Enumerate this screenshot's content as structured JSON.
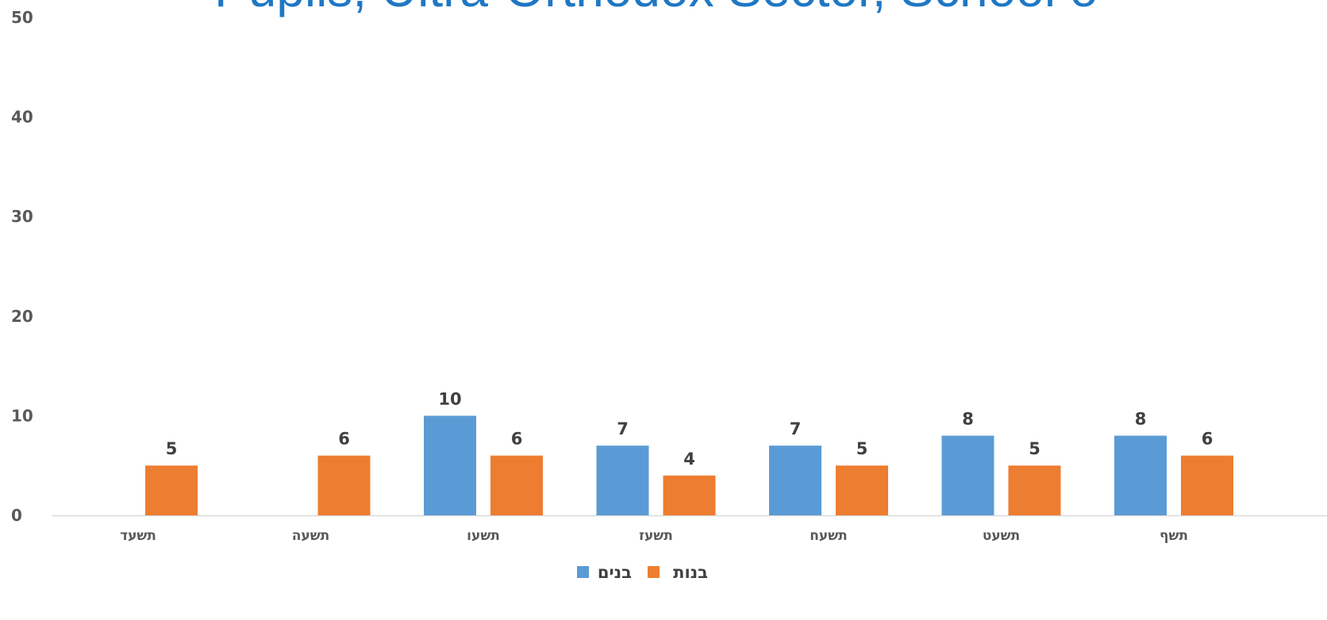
{
  "chart_data": {
    "type": "bar",
    "title": "Pupils, Ultra-Orthodox Sector, School o",
    "xlabel": "",
    "ylabel": "",
    "ylim": [
      0,
      50
    ],
    "yticks": [
      "0",
      "10",
      "20",
      "30",
      "40",
      "50"
    ],
    "grid": false,
    "legend_position": "bottom",
    "categories": [
      "תשעד",
      "תשעה",
      "תשעו",
      "תשעז",
      "תשעח",
      "תשעט",
      "תשף"
    ],
    "series": [
      {
        "name": "בנים",
        "color": "#5b9bd5",
        "values": [
          null,
          null,
          10,
          7,
          7,
          8,
          8
        ]
      },
      {
        "name": "בנות",
        "color": "#ed7d31",
        "values": [
          5,
          6,
          6,
          4,
          5,
          5,
          6
        ]
      }
    ]
  }
}
